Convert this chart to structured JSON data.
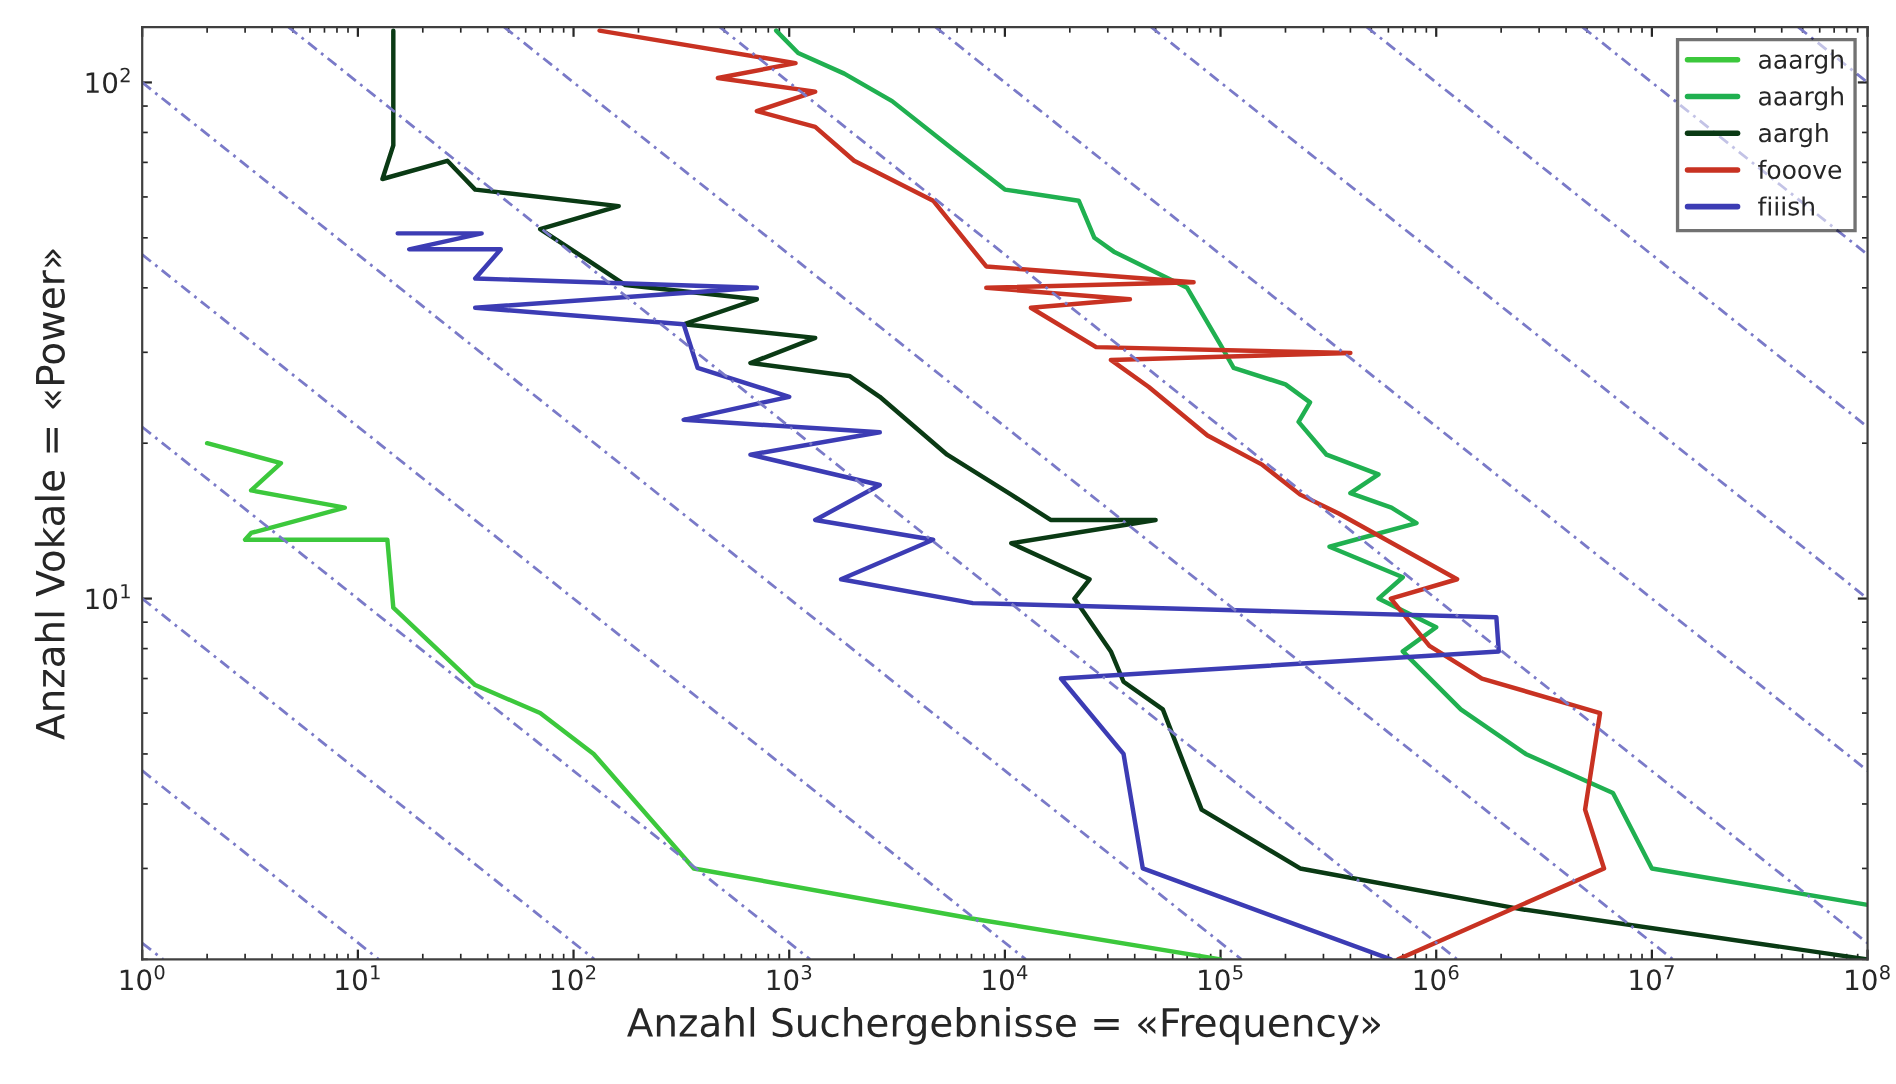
{
  "chart_data": {
    "type": "line",
    "xlabel": "Anzahl Suchergebnisse = «Frequency»",
    "ylabel": "Anzahl Vokale = «Power»",
    "log": "xy",
    "xlim": [
      1,
      100000000
    ],
    "ylim": [
      2,
      128
    ],
    "xticks": [
      {
        "value": 1,
        "label": "10$^{0}$"
      },
      {
        "value": 10,
        "label": "10$^{1}$"
      },
      {
        "value": 100,
        "label": "10$^{2}$"
      },
      {
        "value": 1000,
        "label": "10$^{3}$"
      },
      {
        "value": 10000,
        "label": "10$^{4}$"
      },
      {
        "value": 100000,
        "label": "10$^{5}$"
      },
      {
        "value": 1000000,
        "label": "10$^{6}$"
      },
      {
        "value": 10000000,
        "label": "10$^{7}$"
      },
      {
        "value": 100000000,
        "label": "10$^{8}$"
      }
    ],
    "yticks": [
      {
        "value": 10,
        "label": "10$^{1}$"
      },
      {
        "value": 100,
        "label": "10$^{2}$"
      }
    ],
    "grid": false,
    "legend": "top right",
    "line_style": "solid",
    "series": [
      {
        "name": "aaargh",
        "color": "#3cc83c",
        "x": [
          2.0,
          4.4,
          3.2,
          8.7,
          3.2,
          3.0,
          13.7,
          14.6,
          35,
          70,
          124,
          361,
          7000,
          100000
        ],
        "values": [
          20,
          18.3,
          16.2,
          15,
          13.4,
          13,
          13,
          9.6,
          6.8,
          6,
          5,
          3,
          2.4,
          2
        ]
      },
      {
        "name": "aaargh",
        "color": "#20b050",
        "x": [
          870,
          1100,
          1800,
          3000,
          5800,
          10000,
          22000,
          26000,
          32000,
          70000,
          100000,
          115000,
          200000,
          260000,
          230000,
          310000,
          540000,
          400000,
          620000,
          810000,
          320000,
          700000,
          540000,
          1000000,
          700000,
          1300000,
          2600000,
          6600000,
          10000000,
          100000000
        ],
        "values": [
          126,
          114,
          104,
          92,
          74,
          62,
          59,
          50,
          47,
          40,
          31,
          28,
          26,
          24,
          22,
          19,
          17.4,
          16,
          15,
          14,
          12.6,
          11,
          10,
          8.8,
          7.9,
          6.1,
          5,
          4.2,
          3,
          2.55
        ]
      },
      {
        "name": "aargh",
        "color": "#0a3a14",
        "x": [
          14.6,
          14.6,
          13,
          26,
          35,
          162,
          70,
          114,
          174,
          708,
          324,
          1320,
          661,
          1900,
          2630,
          5400,
          10700,
          16300,
          50000,
          10700,
          24700,
          21000,
          31000,
          35500,
          54000,
          81700,
          234000,
          2500000,
          100000000
        ],
        "values": [
          126,
          75.5,
          65,
          70.5,
          62,
          57.6,
          52,
          45.5,
          40.5,
          38,
          34,
          32,
          28.6,
          27,
          24.6,
          19,
          15.9,
          14.2,
          14.2,
          12.8,
          10.9,
          10,
          7.9,
          6.9,
          6.1,
          3.9,
          3,
          2.5,
          2
        ]
      },
      {
        "name": "fooove",
        "color": "#c83222",
        "x": [
          132,
          1070,
          467,
          1320,
          708,
          1320,
          2000,
          4650,
          8200,
          75000,
          8200,
          38000,
          13200,
          26500,
          400000,
          31000,
          46500,
          87000,
          155000,
          234000,
          355000,
          1250000,
          616000,
          930000,
          1630000,
          5750000,
          4900000,
          6000000,
          666000
        ],
        "values": [
          126,
          109,
          102,
          96,
          88,
          82,
          70.5,
          59,
          44,
          41,
          40,
          38,
          36.6,
          30.7,
          29.9,
          29,
          25.7,
          20.7,
          18.2,
          15.9,
          14.6,
          10.9,
          10,
          8.1,
          7.0,
          6.0,
          3.9,
          3,
          2
        ]
      },
      {
        "name": "fiiish",
        "color": "#3c3cb4",
        "x": [
          15.3,
          37.5,
          17.3,
          46,
          35,
          708,
          35,
          324,
          376,
          1000,
          324,
          2630,
          661,
          2630,
          1320,
          4650,
          1740,
          7100,
          1900000,
          1950000,
          18200,
          35500,
          43600,
          616000
        ],
        "values": [
          51,
          51,
          47.5,
          47.5,
          41.7,
          40,
          36.6,
          34,
          28,
          24.6,
          22.2,
          21,
          19,
          16.6,
          14.2,
          13,
          10.9,
          9.8,
          9.2,
          7.9,
          7.0,
          5.0,
          3,
          2
        ]
      },
      {
        "color": "#7a7ac8",
        "line_style": "dotted",
        "x": [
          1,
          1.25
        ],
        "values": [
          2.15,
          2
        ]
      },
      {
        "color": "#7a7ac8",
        "line_style": "dotted",
        "x": [
          1,
          12.5
        ],
        "values": [
          4.64,
          2
        ]
      },
      {
        "color": "#7a7ac8",
        "line_style": "dotted",
        "x": [
          1,
          125
        ],
        "values": [
          10,
          2
        ]
      },
      {
        "color": "#7a7ac8",
        "line_style": "dotted",
        "x": [
          1,
          1250
        ],
        "values": [
          21.5,
          2
        ]
      },
      {
        "color": "#7a7ac8",
        "line_style": "dotted",
        "x": [
          1,
          12500
        ],
        "values": [
          46.4,
          2
        ]
      },
      {
        "color": "#7a7ac8",
        "line_style": "dotted",
        "x": [
          1,
          125000
        ],
        "values": [
          100,
          2
        ]
      },
      {
        "color": "#7a7ac8",
        "line_style": "dotted",
        "x": [
          4.77,
          1250000
        ],
        "values": [
          128,
          2
        ]
      },
      {
        "color": "#7a7ac8",
        "line_style": "dotted",
        "x": [
          47.7,
          12500000
        ],
        "values": [
          128,
          2
        ]
      },
      {
        "color": "#7a7ac8",
        "line_style": "dotted",
        "x": [
          477,
          100000000
        ],
        "values": [
          128,
          2.15
        ]
      },
      {
        "color": "#7a7ac8",
        "line_style": "dotted",
        "x": [
          4770,
          100000000
        ],
        "values": [
          128,
          4.64
        ]
      },
      {
        "color": "#7a7ac8",
        "line_style": "dotted",
        "x": [
          47700,
          100000000
        ],
        "values": [
          128,
          10
        ]
      },
      {
        "color": "#7a7ac8",
        "line_style": "dotted",
        "x": [
          477000,
          100000000
        ],
        "values": [
          128,
          21.5
        ]
      },
      {
        "color": "#7a7ac8",
        "line_style": "dotted",
        "x": [
          4770000,
          100000000
        ],
        "values": [
          128,
          46.4
        ]
      },
      {
        "color": "#7a7ac8",
        "line_style": "dotted",
        "x": [
          47700000,
          100000000
        ],
        "values": [
          128,
          100
        ]
      }
    ]
  }
}
